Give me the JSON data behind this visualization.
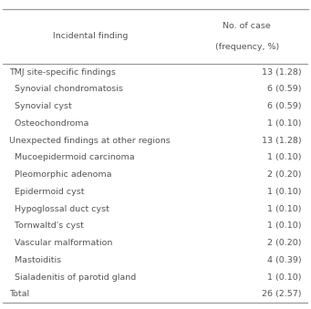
{
  "col1_header": "Incidental finding",
  "col2_header_line1": "No. of case",
  "col2_header_line2": "(frequency, %)",
  "rows": [
    {
      "label": "TMJ site-specific findings",
      "value": "13 (1.28)",
      "indent": 0
    },
    {
      "label": "  Synovial chondromatosis",
      "value": "6 (0.59)",
      "indent": 1
    },
    {
      "label": "  Synovial cyst",
      "value": "6 (0.59)",
      "indent": 1
    },
    {
      "label": "  Osteochondroma",
      "value": "1 (0.10)",
      "indent": 1
    },
    {
      "label": "Unexpected findings at other regions",
      "value": "13 (1.28)",
      "indent": 0
    },
    {
      "label": "  Mucoepidermoid carcinoma",
      "value": "1 (0.10)",
      "indent": 1
    },
    {
      "label": "  Pleomorphic adenoma",
      "value": "2 (0.20)",
      "indent": 1
    },
    {
      "label": "  Epidermoid cyst",
      "value": "1 (0.10)",
      "indent": 1
    },
    {
      "label": "  Hypoglossal duct cyst",
      "value": "1 (0.10)",
      "indent": 1
    },
    {
      "label": "  Tornwaltd's cyst",
      "value": "1 (0.10)",
      "indent": 1
    },
    {
      "label": "  Vascular malformation",
      "value": "2 (0.20)",
      "indent": 1
    },
    {
      "label": "  Mastoiditis",
      "value": "4 (0.39)",
      "indent": 1
    },
    {
      "label": "  Sialadenitis of parotid gland",
      "value": "1 (0.10)",
      "indent": 1
    },
    {
      "label": "Total",
      "value": "26 (2.57)",
      "indent": 0
    }
  ],
  "font_size": 6.8,
  "text_color": "#555555",
  "line_color": "#999999",
  "bg_color": "#ffffff",
  "fig_width": 3.41,
  "fig_height": 3.39,
  "dpi": 100
}
